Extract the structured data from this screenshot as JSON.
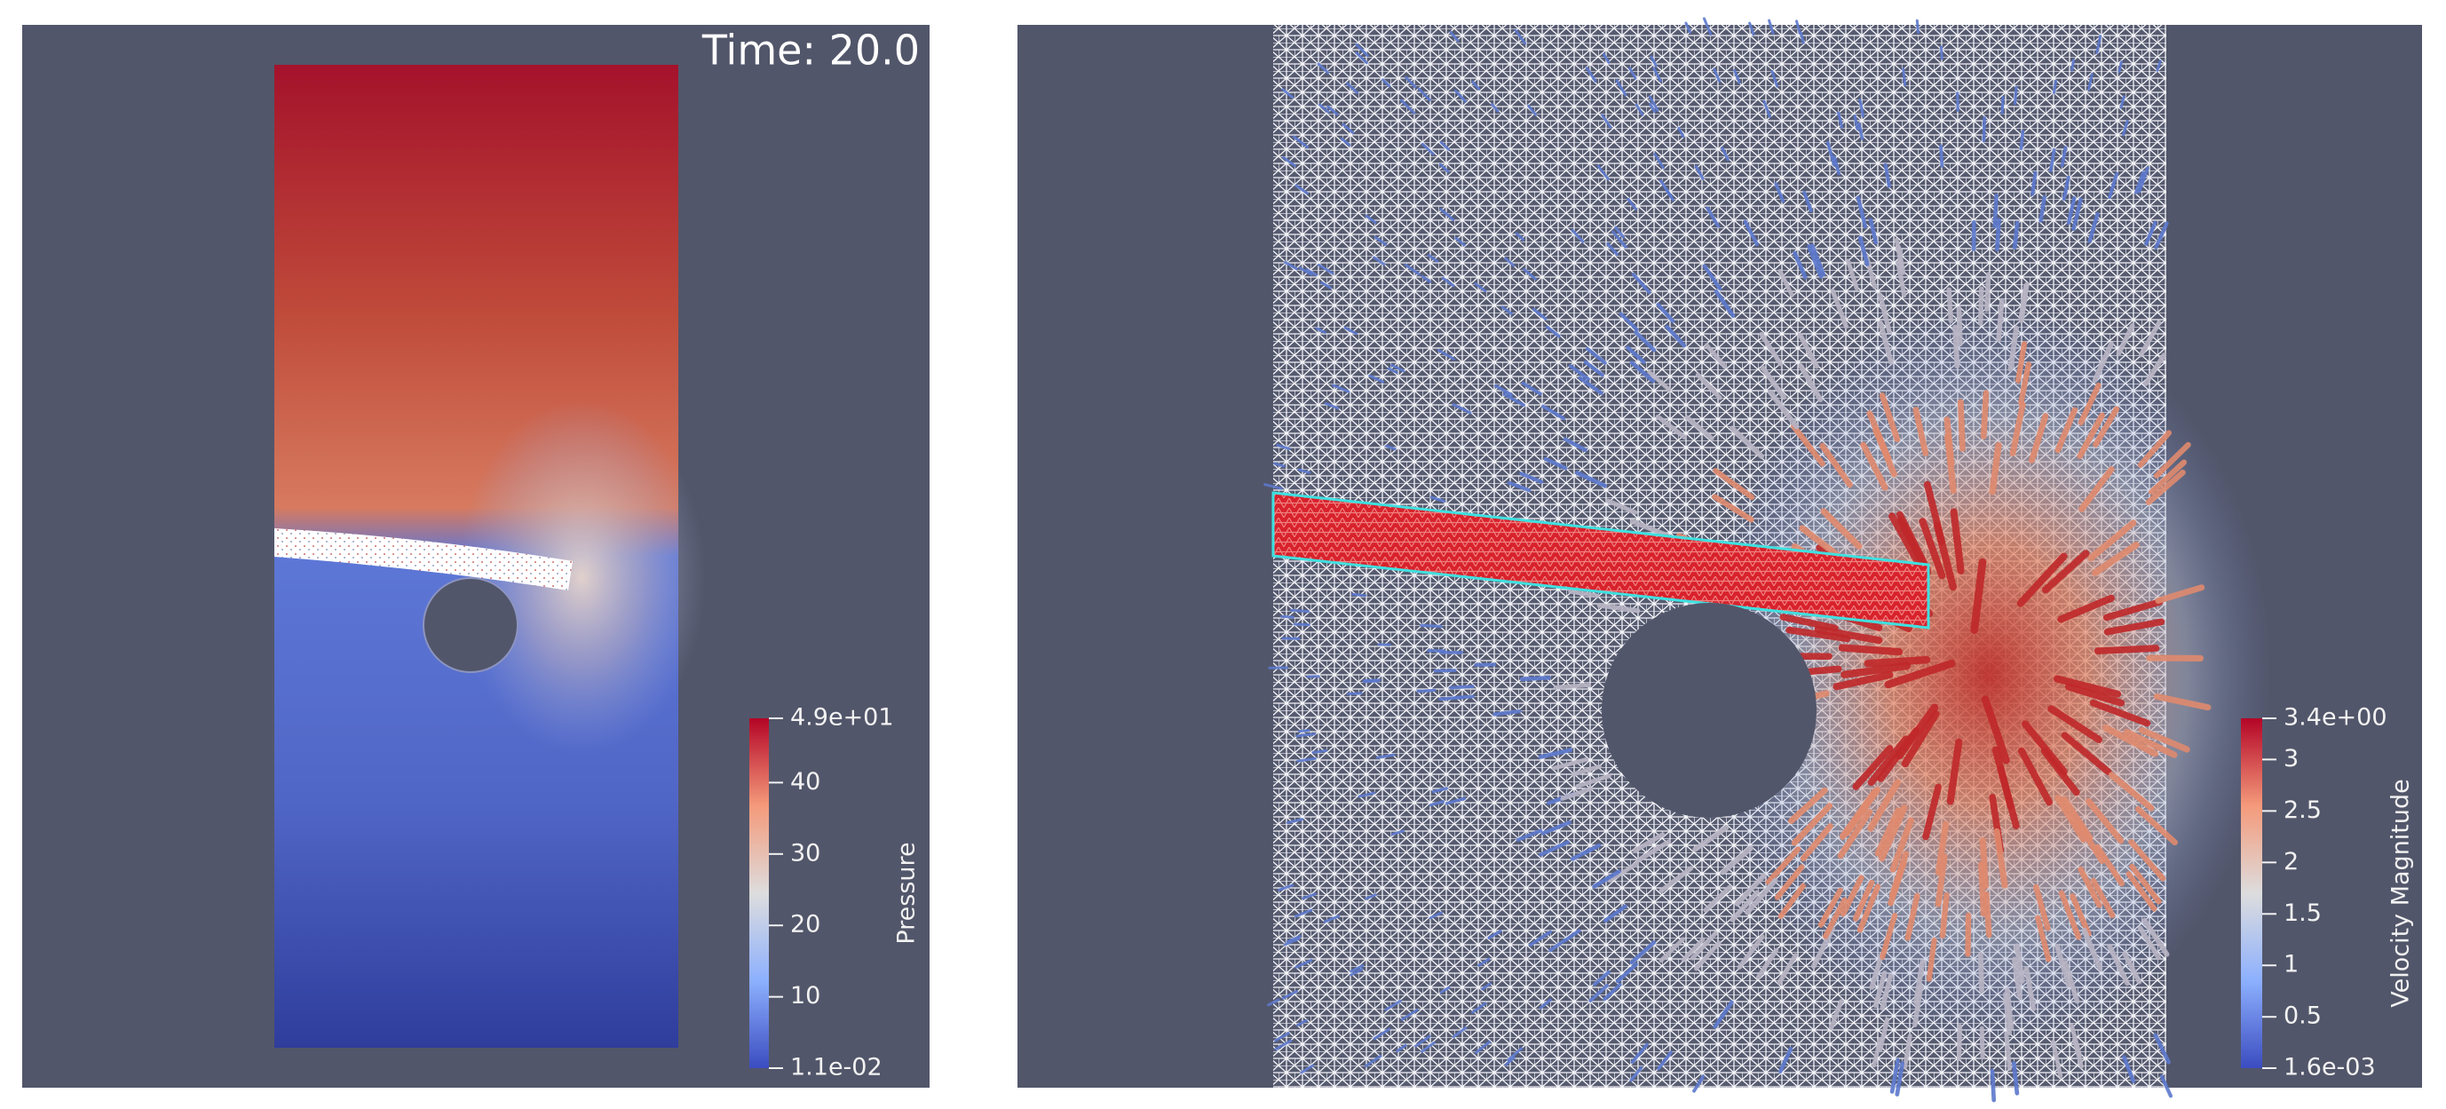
{
  "time_label": "Time: 20.0",
  "pressure_colorbar": {
    "title": "Pressure",
    "min": {
      "value": 0.011,
      "label": "1.1e-02"
    },
    "max": {
      "value": 49,
      "label": "4.9e+01"
    },
    "ticks": [
      10,
      20,
      30,
      40
    ]
  },
  "velocity_colorbar": {
    "title": "Velocity Magnitude",
    "min": {
      "value": 0.0016,
      "label": "1.6e-03"
    },
    "max": {
      "value": 3.4,
      "label": "3.4e+00"
    },
    "ticks": [
      0.5,
      1,
      1.5,
      2,
      2.5,
      3
    ]
  }
}
